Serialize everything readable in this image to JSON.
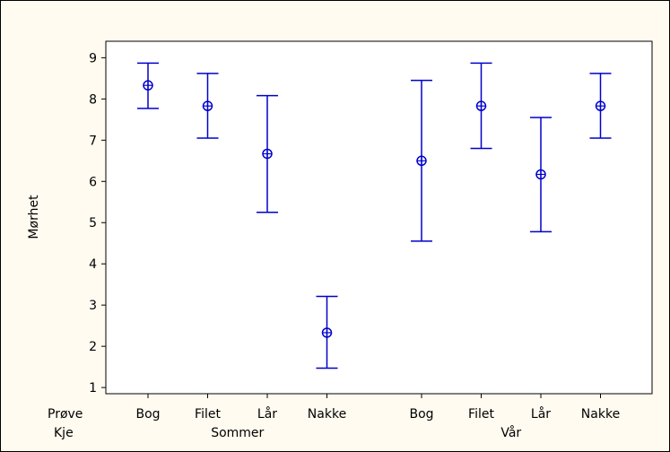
{
  "chart_data": {
    "type": "interval",
    "ylabel": "Mørhet",
    "ylim": [
      0.85,
      9.4
    ],
    "yticks": [
      1,
      2,
      3,
      4,
      5,
      6,
      7,
      8,
      9
    ],
    "row_labels": [
      "Prøve",
      "Kje"
    ],
    "groups": [
      {
        "name": "Sommer",
        "points": [
          {
            "category": "Bog",
            "mean": 8.33,
            "low": 7.77,
            "high": 8.87
          },
          {
            "category": "Filet",
            "mean": 7.83,
            "low": 7.05,
            "high": 8.62
          },
          {
            "category": "Lår",
            "mean": 6.67,
            "low": 5.25,
            "high": 8.08
          },
          {
            "category": "Nakke",
            "mean": 2.33,
            "low": 1.47,
            "high": 3.21
          }
        ]
      },
      {
        "name": "Vår",
        "points": [
          {
            "category": "Bog",
            "mean": 6.5,
            "low": 4.55,
            "high": 8.45
          },
          {
            "category": "Filet",
            "mean": 7.83,
            "low": 6.8,
            "high": 8.87
          },
          {
            "category": "Lår",
            "mean": 6.17,
            "low": 4.78,
            "high": 7.55
          },
          {
            "category": "Nakke",
            "mean": 7.83,
            "low": 7.05,
            "high": 8.62
          }
        ]
      }
    ],
    "colors": {
      "series": "#0000cc",
      "axis": "#000000",
      "background": "#fffbf0",
      "plot": "#ffffff"
    }
  }
}
